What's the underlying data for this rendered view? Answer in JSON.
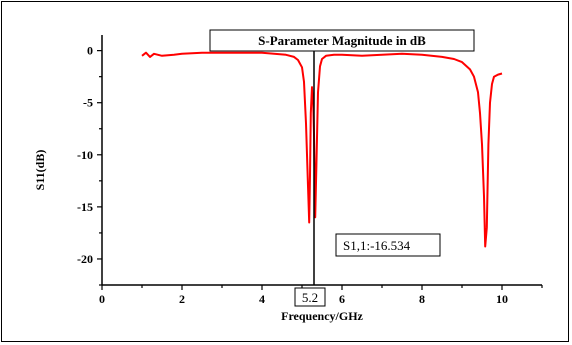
{
  "chart_data": {
    "type": "line",
    "title": "S-Parameter Magnitude in dB",
    "xlabel": "Frequency/GHz",
    "ylabel": "S11(dB)",
    "xlim": [
      0,
      11
    ],
    "ylim": [
      -22.5,
      1.5
    ],
    "xticks": [
      0,
      2,
      4,
      6,
      8,
      10
    ],
    "yticks": [
      0,
      -5,
      -10,
      -15,
      -20
    ],
    "grid": false,
    "series": [
      {
        "color": "#ff0000",
        "x": [
          1.0,
          1.1,
          1.2,
          1.3,
          1.5,
          1.8,
          2.0,
          2.5,
          3.0,
          3.5,
          4.0,
          4.3,
          4.6,
          4.8,
          4.9,
          5.0,
          5.05,
          5.1,
          5.15,
          5.18,
          5.2,
          5.22,
          5.25,
          5.28,
          5.3,
          5.33,
          5.36,
          5.4,
          5.45,
          5.5,
          5.6,
          5.8,
          6.0,
          6.5,
          7.0,
          7.5,
          8.0,
          8.5,
          8.8,
          9.0,
          9.2,
          9.3,
          9.4,
          9.45,
          9.5,
          9.55,
          9.58,
          9.62,
          9.66,
          9.7,
          9.75,
          9.8,
          9.9,
          10.0
        ],
        "y": [
          -0.5,
          -0.2,
          -0.6,
          -0.3,
          -0.5,
          -0.4,
          -0.3,
          -0.2,
          -0.2,
          -0.2,
          -0.2,
          -0.3,
          -0.4,
          -0.6,
          -0.9,
          -1.6,
          -3.0,
          -7.0,
          -13.0,
          -16.5,
          -12.0,
          -6.0,
          -3.5,
          -5.0,
          -8.0,
          -16.0,
          -11.0,
          -4.0,
          -1.5,
          -0.8,
          -0.5,
          -0.4,
          -0.4,
          -0.5,
          -0.4,
          -0.3,
          -0.4,
          -0.6,
          -0.8,
          -1.1,
          -1.8,
          -2.5,
          -4.0,
          -6.0,
          -9.0,
          -14.0,
          -18.8,
          -17.0,
          -9.0,
          -5.0,
          -3.2,
          -2.5,
          -2.3,
          -2.2
        ]
      }
    ],
    "annotations": {
      "marker_x": 5.2,
      "marker_label": "5.2",
      "point_label": "S1,1:-16.534"
    }
  }
}
